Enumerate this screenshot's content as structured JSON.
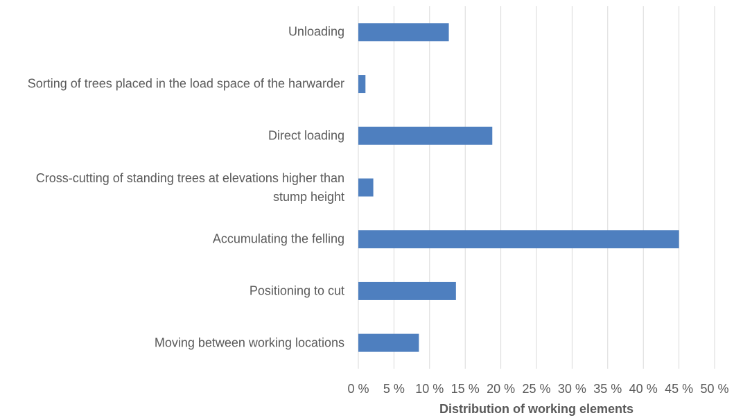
{
  "chart_data": {
    "type": "bar",
    "orientation": "horizontal",
    "categories": [
      "Unloading",
      "Sorting of trees placed in the load space of the harwarder",
      "Direct loading",
      "Cross-cutting of standing trees at elevations higher than stump height",
      "Accumulating the felling",
      "Positioning to cut",
      "Moving between working locations"
    ],
    "values": [
      12.7,
      1.0,
      18.8,
      2.1,
      45.0,
      13.7,
      8.5
    ],
    "color": "#4e7fbf",
    "x_label": "Distribution of working elements",
    "xlim": [
      0,
      50
    ],
    "xticks": [
      {
        "value": 0,
        "label": "0 %"
      },
      {
        "value": 5,
        "label": "5 %"
      },
      {
        "value": 10,
        "label": "10 %"
      },
      {
        "value": 15,
        "label": "15 %"
      },
      {
        "value": 20,
        "label": "20 %"
      },
      {
        "value": 25,
        "label": "25 %"
      },
      {
        "value": 30,
        "label": "30 %"
      },
      {
        "value": 35,
        "label": "35 %"
      },
      {
        "value": 40,
        "label": "40 %"
      },
      {
        "value": 45,
        "label": "45 %"
      },
      {
        "value": 50,
        "label": "50 %"
      }
    ],
    "grid": true
  }
}
